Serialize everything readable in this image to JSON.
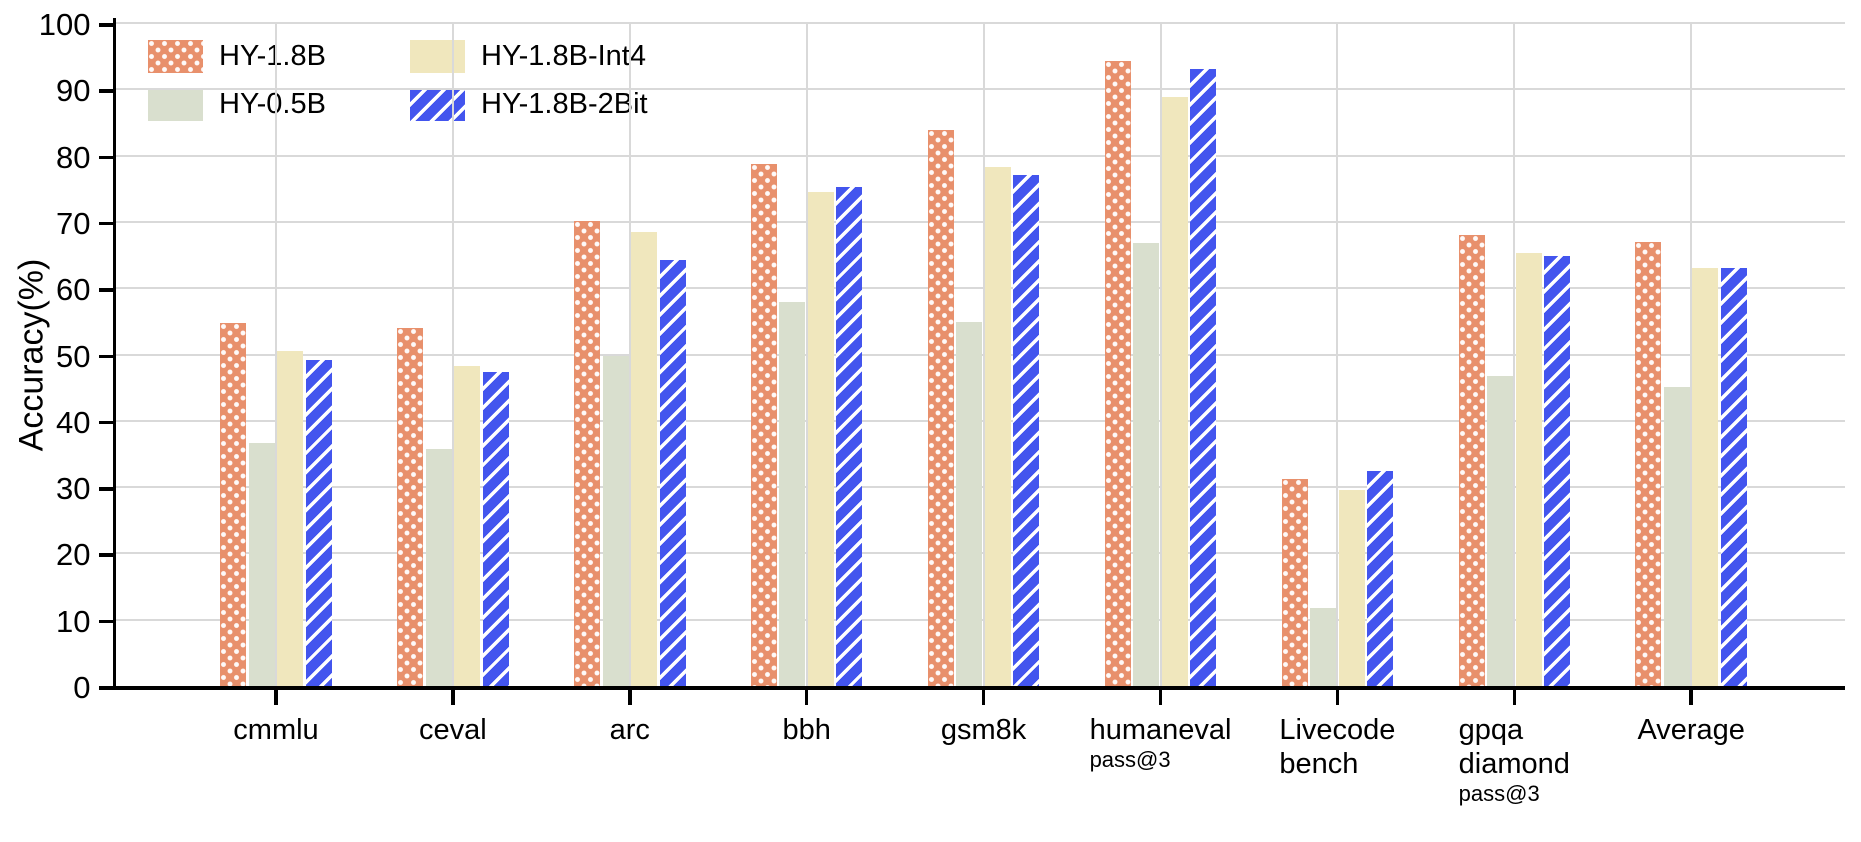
{
  "chart_data": {
    "type": "bar",
    "title": "",
    "xlabel": "",
    "ylabel": "Accuracy(%)",
    "ylim": [
      0,
      100
    ],
    "ytick_interval": 10,
    "grid": true,
    "legend_position": "top-left-inside",
    "categories": [
      {
        "lines": [
          "cmmlu"
        ],
        "sublabel": ""
      },
      {
        "lines": [
          "ceval"
        ],
        "sublabel": ""
      },
      {
        "lines": [
          "arc"
        ],
        "sublabel": ""
      },
      {
        "lines": [
          "bbh"
        ],
        "sublabel": ""
      },
      {
        "lines": [
          "gsm8k"
        ],
        "sublabel": ""
      },
      {
        "lines": [
          "humaneval"
        ],
        "sublabel": "pass@3"
      },
      {
        "lines": [
          "Livecode",
          "bench"
        ],
        "sublabel": ""
      },
      {
        "lines": [
          "gpqa",
          "diamond"
        ],
        "sublabel": "pass@3"
      },
      {
        "lines": [
          "Average"
        ],
        "sublabel": ""
      }
    ],
    "series": [
      {
        "name": "HY-1.8B",
        "color": "#e8906c",
        "pattern": "dots",
        "values": [
          54.7,
          54.0,
          70.2,
          78.8,
          83.9,
          94.3,
          31.2,
          68.0,
          66.9
        ]
      },
      {
        "name": "HY-0.5B",
        "color": "#d9dfce",
        "pattern": "solid",
        "values": [
          36.7,
          35.7,
          49.7,
          57.9,
          54.9,
          66.8,
          11.8,
          46.7,
          45.1
        ]
      },
      {
        "name": "HY-1.8B-Int4",
        "color": "#f0e7bd",
        "pattern": "solid",
        "values": [
          50.5,
          48.3,
          68.5,
          74.5,
          78.3,
          88.8,
          29.6,
          65.3,
          63.1
        ]
      },
      {
        "name": "HY-1.8B-2Bit",
        "color": "#4355ee",
        "pattern": "stripes",
        "values": [
          49.1,
          47.3,
          64.3,
          75.3,
          77.1,
          93.1,
          32.4,
          64.9,
          63.0
        ]
      }
    ]
  },
  "colors": {
    "background": "#ffffff",
    "gridline": "#d9d9d9",
    "axis": "#000000",
    "text": "#000000"
  }
}
